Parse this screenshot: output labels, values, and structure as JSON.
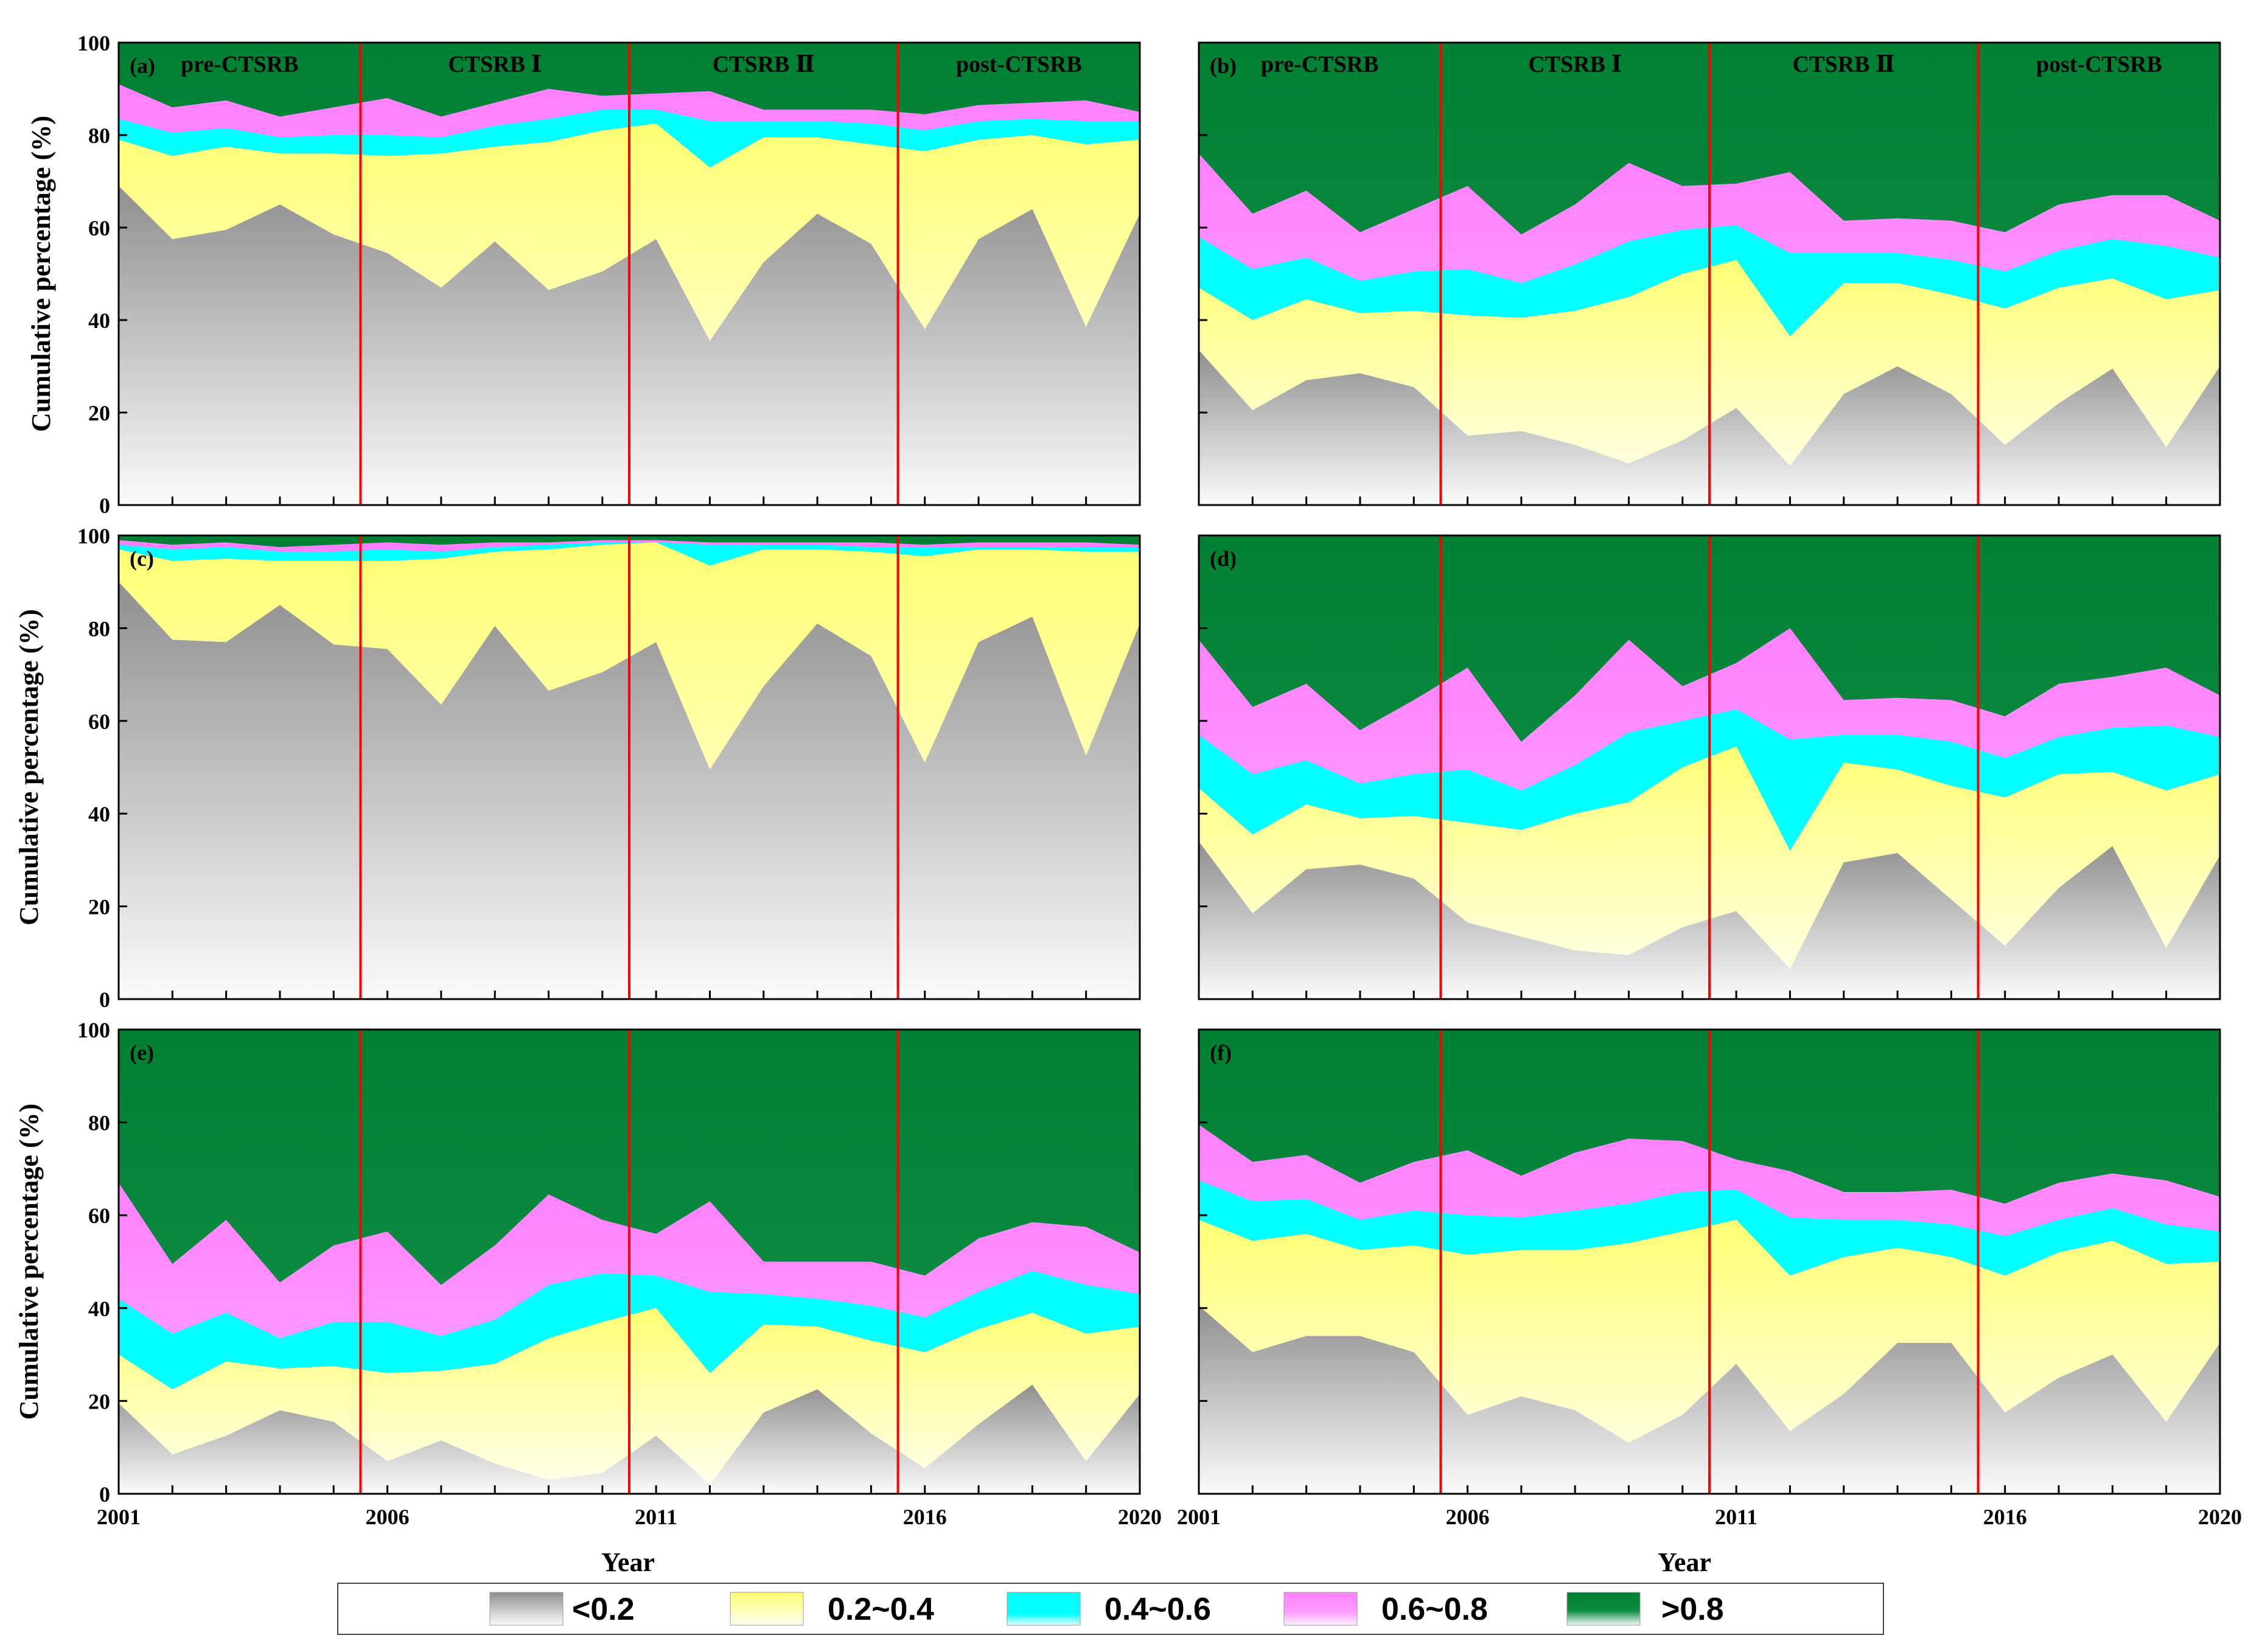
{
  "chart_data": {
    "type": "area",
    "x": [
      2001,
      2002,
      2003,
      2004,
      2005,
      2006,
      2007,
      2008,
      2009,
      2010,
      2011,
      2012,
      2013,
      2014,
      2015,
      2016,
      2017,
      2018,
      2019,
      2020
    ],
    "x_ticks": [
      "2001",
      "2006",
      "2011",
      "2016",
      "2020"
    ],
    "y_ticks": [
      "0",
      "20",
      "40",
      "60",
      "80",
      "100"
    ],
    "ylim": [
      0,
      100
    ],
    "xlabel": "Year",
    "ylabel": "Cumulative percentage (%)",
    "period_breaks": [
      2005.5,
      2010.5,
      2015.5
    ],
    "period_labels": [
      "pre-CTSRB",
      "CTSRB Ⅰ",
      "CTSRB Ⅱ",
      "post-CTSRB"
    ],
    "classes": [
      {
        "name": "<0.2",
        "color": "#8f8f8f"
      },
      {
        "name": "0.2~0.4",
        "color": "#ffff73"
      },
      {
        "name": "0.4~0.6",
        "color": "#00ffff"
      },
      {
        "name": "0.6~0.8",
        "color": "#ff80ff"
      },
      {
        "name": ">0.8",
        "color": "#008033"
      }
    ],
    "panels": [
      {
        "label": "(a)",
        "show_periods": true,
        "series": [
          {
            "name": "<0.2",
            "values": [
              69,
              57.5,
              59.5,
              65,
              58.5,
              54.5,
              47,
              57,
              46.5,
              50.5,
              57.5,
              35.5,
              52.5,
              63,
              56.5,
              38,
              57.5,
              64,
              38.5,
              63
            ]
          },
          {
            "name": "0.2~0.4",
            "values": [
              79,
              75.5,
              77.5,
              76,
              76,
              75.5,
              76,
              77.5,
              78.5,
              81,
              82.5,
              73,
              79.5,
              79.5,
              78,
              76.5,
              79,
              80,
              78,
              79
            ]
          },
          {
            "name": "0.4~0.6",
            "values": [
              83.5,
              80.5,
              81.5,
              79.5,
              80,
              80,
              79.5,
              82,
              83.5,
              85.5,
              85.5,
              83,
              83,
              83,
              82.5,
              81,
              83,
              83.5,
              83,
              83
            ]
          },
          {
            "name": "0.6~0.8",
            "values": [
              91,
              86,
              87.5,
              84,
              86,
              88,
              84,
              87,
              90,
              88.5,
              89,
              89.5,
              85.5,
              85.5,
              85.5,
              84.5,
              86.5,
              87,
              87.5,
              85
            ]
          }
        ]
      },
      {
        "label": "(b)",
        "show_periods": true,
        "series": [
          {
            "name": "<0.2",
            "values": [
              33.5,
              20.5,
              27,
              28.5,
              25.5,
              15,
              16,
              13,
              9,
              14,
              21,
              8.5,
              24,
              30,
              24,
              13,
              22,
              29.5,
              12.5,
              30
            ]
          },
          {
            "name": "0.2~0.4",
            "values": [
              47,
              40,
              44.5,
              41.5,
              42,
              41,
              40.5,
              42,
              45,
              50,
              53,
              36.5,
              48,
              48,
              45.5,
              42.5,
              47,
              49,
              44.5,
              46.5
            ]
          },
          {
            "name": "0.4~0.6",
            "values": [
              58,
              51,
              53.5,
              48.5,
              50.5,
              51,
              48,
              52,
              57,
              59.5,
              60.5,
              54.5,
              54.5,
              54.5,
              53,
              50.5,
              55,
              57.5,
              56,
              53.5
            ]
          },
          {
            "name": "0.6~0.8",
            "values": [
              76,
              63,
              68,
              59,
              64,
              69,
              58.5,
              65,
              74,
              69,
              69.5,
              72,
              61.5,
              62,
              61.5,
              59,
              65,
              67,
              67,
              61.5
            ]
          }
        ]
      },
      {
        "label": "(c)",
        "show_periods": false,
        "series": [
          {
            "name": "<0.2",
            "values": [
              90,
              77.5,
              77,
              85,
              76.5,
              75.5,
              63.5,
              80.5,
              66.5,
              70.5,
              77,
              49.5,
              67.5,
              81,
              74,
              51,
              77,
              82.5,
              52.5,
              81
            ]
          },
          {
            "name": "0.2~0.4",
            "values": [
              97,
              94.5,
              95,
              94.5,
              94.5,
              94.5,
              95,
              96.5,
              97,
              98,
              98.5,
              93.5,
              97,
              97,
              96.5,
              95.5,
              97,
              97,
              96.5,
              96.5
            ]
          },
          {
            "name": "0.4~0.6",
            "values": [
              98,
              97,
              97.5,
              96.5,
              96.5,
              97,
              96.5,
              97.5,
              98,
              98.5,
              98.5,
              98,
              98,
              98,
              97.5,
              97.5,
              97.5,
              97.5,
              97.5,
              97.5
            ]
          },
          {
            "name": "0.6~0.8",
            "values": [
              99,
              98,
              98.5,
              97.5,
              98,
              98.5,
              98,
              98.5,
              98.5,
              99,
              99,
              98.5,
              98.5,
              98.5,
              98.5,
              98,
              98.5,
              98.5,
              98.5,
              98
            ]
          }
        ]
      },
      {
        "label": "(d)",
        "show_periods": false,
        "series": [
          {
            "name": "<0.2",
            "values": [
              34,
              18.5,
              28,
              29,
              26,
              16.5,
              13.5,
              10.5,
              9.5,
              15.5,
              19,
              6.5,
              29.5,
              31.5,
              21.5,
              11.5,
              24,
              33,
              11,
              31
            ]
          },
          {
            "name": "0.2~0.4",
            "values": [
              45.5,
              35.5,
              42,
              39,
              39.5,
              38,
              36.5,
              40,
              42.5,
              50,
              54.5,
              32,
              51,
              49.5,
              46,
              43.5,
              48.5,
              49,
              45,
              48.5
            ]
          },
          {
            "name": "0.4~0.6",
            "values": [
              57,
              48.5,
              51.5,
              46.5,
              48.5,
              49.5,
              45,
              50.5,
              57.5,
              60,
              62.5,
              56,
              57,
              57,
              55.5,
              52,
              56.5,
              58.5,
              59,
              56.5
            ]
          },
          {
            "name": "0.6~0.8",
            "values": [
              77.5,
              63,
              68,
              58,
              64.5,
              71.5,
              55.5,
              65.5,
              77.5,
              67.5,
              72.5,
              80,
              64.5,
              65,
              64.5,
              61,
              68,
              69.5,
              71.5,
              65.5
            ]
          }
        ]
      },
      {
        "label": "(e)",
        "show_periods": false,
        "series": [
          {
            "name": "<0.2",
            "values": [
              19.5,
              8.5,
              12.5,
              18,
              15.5,
              7,
              11.5,
              6.5,
              3,
              4.5,
              12.5,
              2,
              17.5,
              22.5,
              13,
              5.5,
              15,
              23.5,
              7,
              21.5
            ]
          },
          {
            "name": "0.2~0.4",
            "values": [
              30,
              22.5,
              28.5,
              27,
              27.5,
              26,
              26.5,
              28,
              33.5,
              37,
              40,
              26,
              36.5,
              36,
              33,
              30.5,
              35.5,
              39,
              34.5,
              36
            ]
          },
          {
            "name": "0.4~0.6",
            "values": [
              42,
              34.5,
              39,
              33.5,
              37,
              37,
              34,
              37.5,
              45,
              47.5,
              47,
              43.5,
              43,
              42,
              40.5,
              38,
              43.5,
              48,
              45,
              43
            ]
          },
          {
            "name": "0.6~0.8",
            "values": [
              67,
              49.5,
              59,
              45.5,
              53.5,
              56.5,
              45,
              53.5,
              64.5,
              59,
              56,
              63,
              50,
              50,
              50,
              47,
              55,
              58.5,
              57.5,
              52
            ]
          }
        ]
      },
      {
        "label": "(f)",
        "show_periods": false,
        "series": [
          {
            "name": "<0.2",
            "values": [
              40.5,
              30.5,
              34,
              34,
              30.5,
              17,
              21,
              18,
              11,
              17,
              28,
              13.5,
              21.5,
              32.5,
              32.5,
              17.5,
              25,
              30,
              15.5,
              32.5
            ]
          },
          {
            "name": "0.2~0.4",
            "values": [
              59,
              54.5,
              56,
              52.5,
              53.5,
              51.5,
              52.5,
              52.5,
              54,
              56.5,
              59,
              47,
              51,
              53,
              51,
              47,
              52,
              54.5,
              49.5,
              50
            ]
          },
          {
            "name": "0.4~0.6",
            "values": [
              67.5,
              63,
              63.5,
              59,
              61,
              60,
              59.5,
              61,
              62.5,
              65,
              65.5,
              59.5,
              59,
              59,
              58,
              55.5,
              59,
              61.5,
              58,
              56.5
            ]
          },
          {
            "name": "0.6~0.8",
            "values": [
              79.5,
              71.5,
              73,
              67,
              71.5,
              74,
              68.5,
              73.5,
              76.5,
              76,
              72,
              69.5,
              65,
              65,
              65.5,
              62.5,
              67,
              69,
              67.5,
              64
            ]
          }
        ]
      }
    ]
  }
}
